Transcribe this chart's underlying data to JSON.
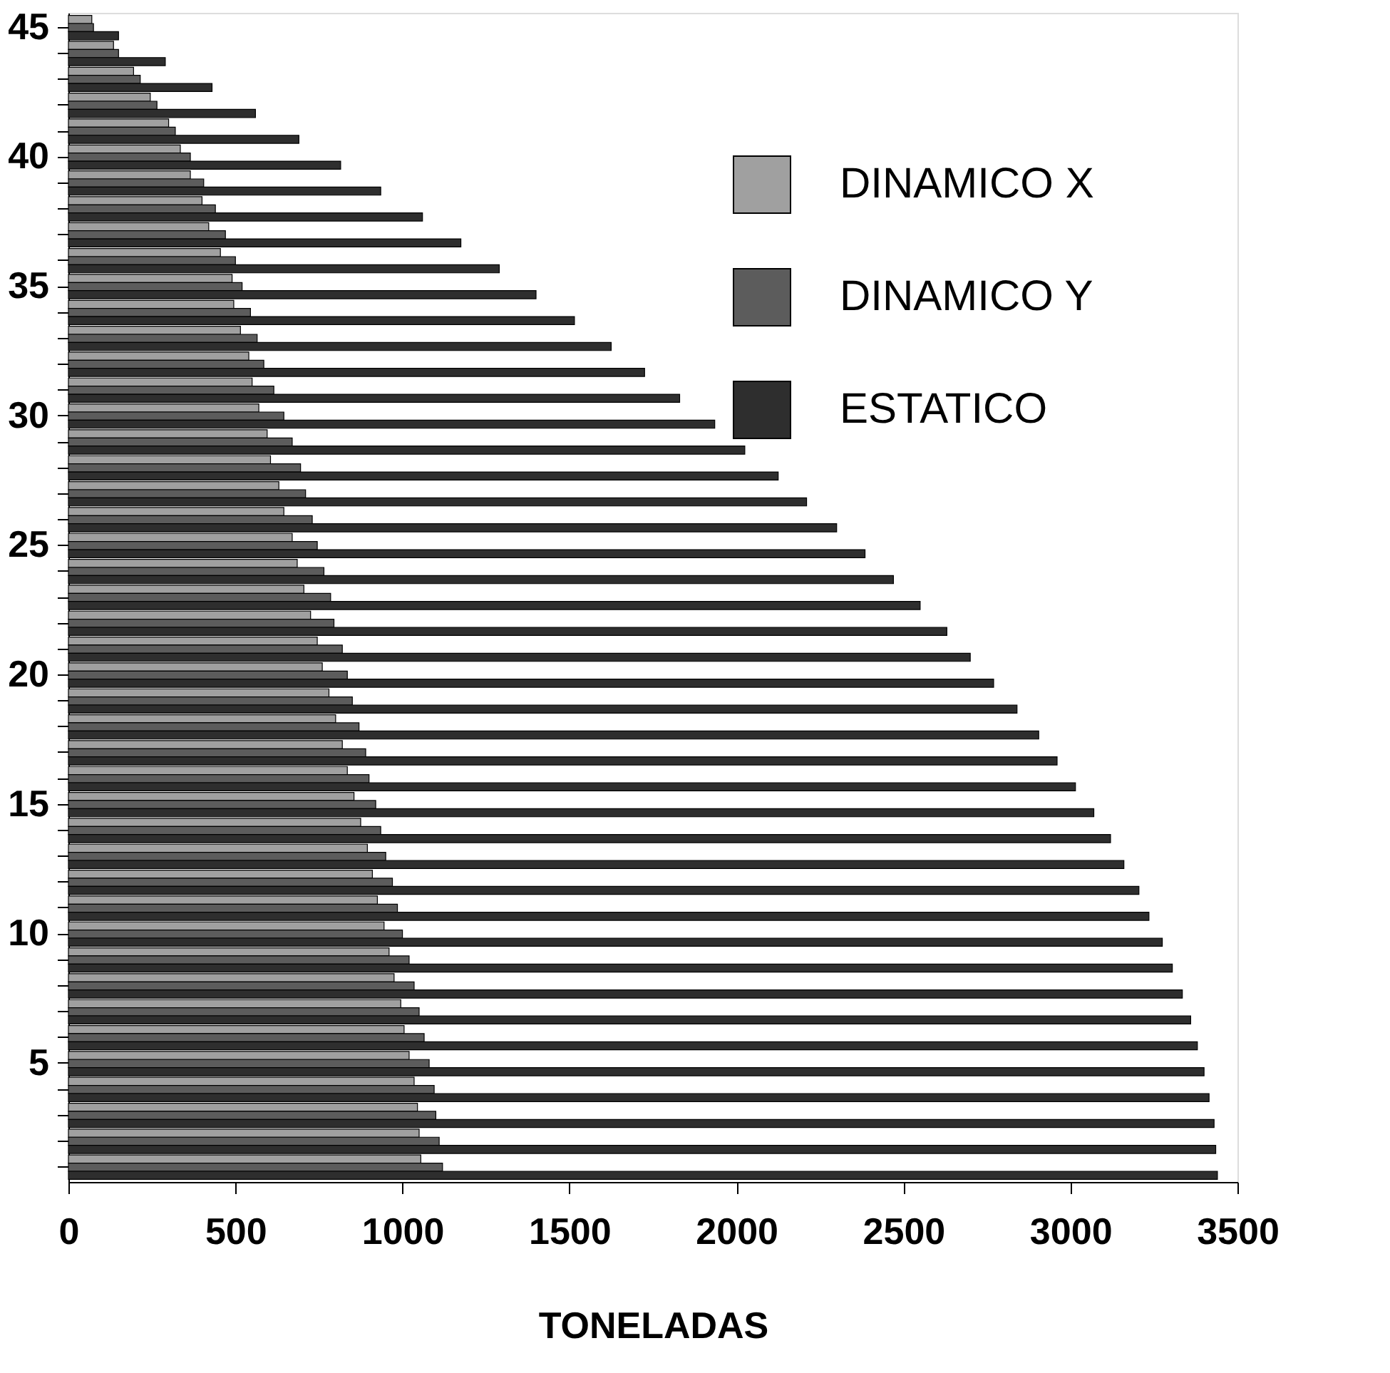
{
  "chart_data": {
    "type": "bar",
    "orientation": "horizontal",
    "xlabel": "TONELADAS",
    "categories": [
      "45",
      null,
      null,
      null,
      null,
      "40",
      null,
      null,
      null,
      null,
      "35",
      null,
      null,
      null,
      null,
      "30",
      null,
      null,
      null,
      null,
      "25",
      null,
      null,
      null,
      null,
      "20",
      null,
      null,
      null,
      null,
      "15",
      null,
      null,
      null,
      null,
      "10",
      null,
      null,
      null,
      null,
      "5",
      null,
      null,
      null,
      null
    ],
    "series": [
      {
        "name": "DINAMICO X",
        "color": "#a0a0a0",
        "values": [
          70,
          135,
          195,
          245,
          300,
          335,
          365,
          400,
          420,
          455,
          490,
          495,
          515,
          540,
          550,
          570,
          595,
          605,
          630,
          645,
          670,
          685,
          705,
          725,
          745,
          760,
          780,
          800,
          820,
          835,
          855,
          875,
          895,
          910,
          925,
          945,
          960,
          975,
          995,
          1005,
          1020,
          1035,
          1045,
          1050,
          1055
        ]
      },
      {
        "name": "DINAMICO Y",
        "color": "#5c5c5c",
        "values": [
          75,
          150,
          215,
          265,
          320,
          365,
          405,
          440,
          470,
          500,
          520,
          545,
          565,
          585,
          615,
          645,
          670,
          695,
          710,
          730,
          745,
          765,
          785,
          795,
          820,
          835,
          850,
          870,
          890,
          900,
          920,
          935,
          950,
          970,
          985,
          1000,
          1020,
          1035,
          1050,
          1065,
          1080,
          1095,
          1100,
          1110,
          1120
        ]
      },
      {
        "name": "ESTATICO",
        "color": "#2e2e2e",
        "values": [
          150,
          290,
          430,
          560,
          690,
          815,
          935,
          1060,
          1175,
          1290,
          1400,
          1515,
          1625,
          1725,
          1830,
          1935,
          2025,
          2125,
          2210,
          2300,
          2385,
          2470,
          2550,
          2630,
          2700,
          2770,
          2840,
          2905,
          2960,
          3015,
          3070,
          3120,
          3160,
          3205,
          3235,
          3275,
          3305,
          3335,
          3360,
          3380,
          3400,
          3415,
          3430,
          3435,
          3440
        ]
      }
    ],
    "xlim": [
      0,
      3500
    ],
    "xticks": [
      0,
      500,
      1000,
      1500,
      2000,
      2500,
      3000,
      3500
    ],
    "grid": false,
    "legend": "top right"
  }
}
